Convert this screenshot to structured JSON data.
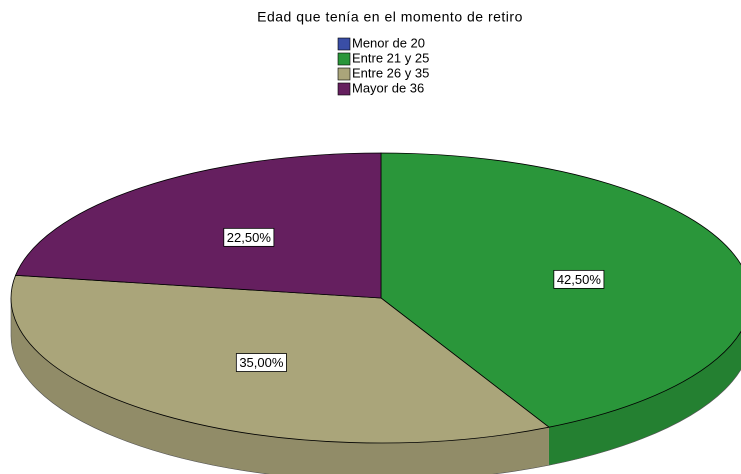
{
  "chart_data": {
    "type": "pie3d",
    "title": "Edad que tenía en el momento de retiro",
    "categories": [
      "Menor de 20",
      "Entre 21 y 25",
      "Entre 26 y 35",
      "Mayor de 36"
    ],
    "values": [
      0,
      42.5,
      35,
      22.5
    ],
    "value_labels": [
      null,
      "42,50%",
      "35,00%",
      "22,50%"
    ],
    "colors": [
      "#3a4ea6",
      "#2a963a",
      "#aaa57a",
      "#651f5f"
    ],
    "legend": "top"
  }
}
